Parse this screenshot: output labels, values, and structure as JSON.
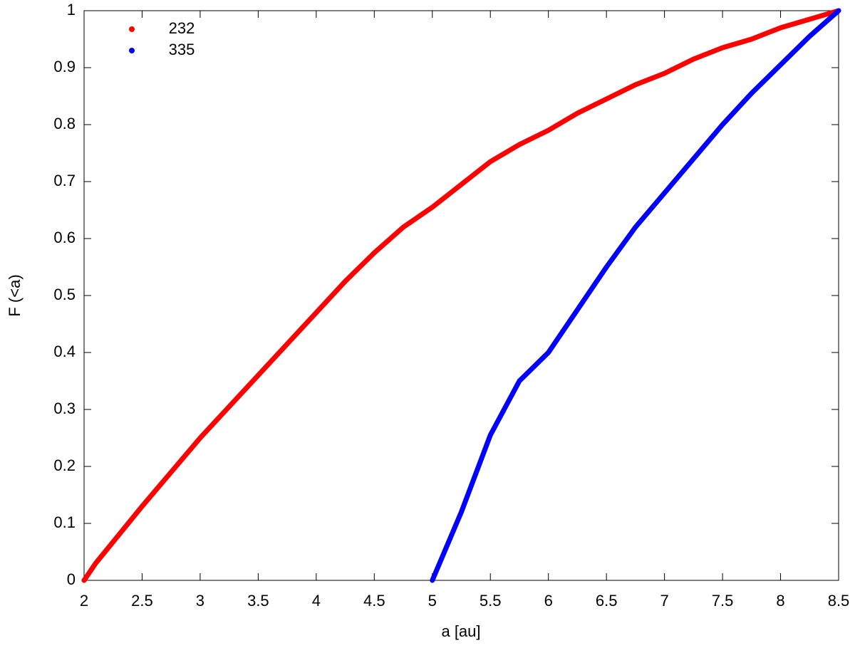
{
  "chart_data": {
    "type": "line",
    "xlabel": "a [au]",
    "ylabel": "F (<a)",
    "xlim": [
      2,
      8.5
    ],
    "ylim": [
      0,
      1
    ],
    "xticks": [
      2,
      2.5,
      3,
      3.5,
      4,
      4.5,
      5,
      5.5,
      6,
      6.5,
      7,
      7.5,
      8,
      8.5
    ],
    "yticks": [
      0,
      0.1,
      0.2,
      0.3,
      0.4,
      0.5,
      0.6,
      0.7,
      0.8,
      0.9,
      1
    ],
    "grid": false,
    "legend": "top-left",
    "series": [
      {
        "name": "232",
        "color": "#ff0000",
        "x": [
          2,
          2.1,
          2.2,
          2.5,
          2.75,
          3,
          3.25,
          3.5,
          3.75,
          4,
          4.25,
          4.5,
          4.75,
          5,
          5.25,
          5.5,
          5.75,
          6,
          6.25,
          6.5,
          6.75,
          7,
          7.25,
          7.5,
          7.75,
          8,
          8.25,
          8.5
        ],
        "values": [
          0,
          0.03,
          0.055,
          0.13,
          0.19,
          0.25,
          0.305,
          0.36,
          0.415,
          0.47,
          0.525,
          0.575,
          0.62,
          0.655,
          0.695,
          0.735,
          0.765,
          0.79,
          0.82,
          0.845,
          0.87,
          0.89,
          0.915,
          0.935,
          0.95,
          0.97,
          0.985,
          1
        ]
      },
      {
        "name": "335",
        "color": "#0000ff",
        "x": [
          5,
          5.25,
          5.5,
          5.75,
          6,
          6.25,
          6.5,
          6.75,
          7,
          7.25,
          7.5,
          7.75,
          8,
          8.25,
          8.5
        ],
        "values": [
          0,
          0.12,
          0.255,
          0.35,
          0.4,
          0.475,
          0.55,
          0.62,
          0.68,
          0.74,
          0.8,
          0.855,
          0.905,
          0.955,
          1
        ]
      }
    ]
  }
}
